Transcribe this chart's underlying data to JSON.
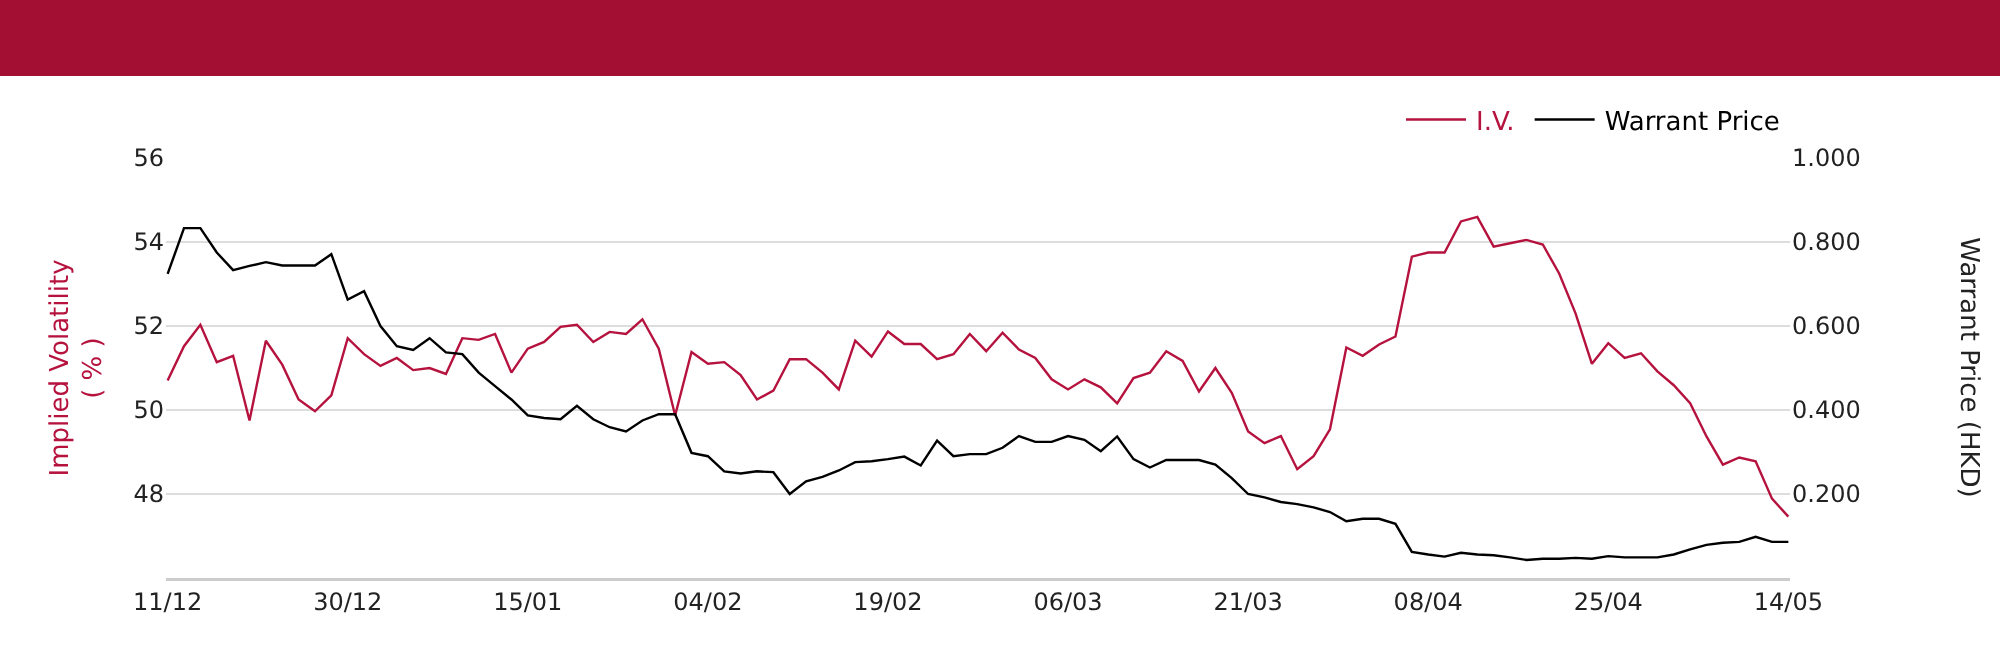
{
  "chart_data": {
    "type": "line",
    "xlabel": null,
    "ylabel": "Implied Volatility\n( % )",
    "y2label": "Warrant Price (HKD)",
    "categories": [
      "11/12",
      null,
      null,
      null,
      null,
      null,
      null,
      null,
      null,
      null,
      null,
      "30/12",
      null,
      null,
      null,
      null,
      null,
      null,
      null,
      null,
      null,
      null,
      "15/01",
      null,
      null,
      null,
      null,
      null,
      null,
      null,
      null,
      null,
      null,
      "04/02",
      null,
      null,
      null,
      null,
      null,
      null,
      null,
      null,
      null,
      null,
      "19/02",
      null,
      null,
      null,
      null,
      null,
      null,
      null,
      null,
      null,
      null,
      "06/03",
      null,
      null,
      null,
      null,
      null,
      null,
      null,
      null,
      null,
      null,
      "21/03",
      null,
      null,
      null,
      null,
      null,
      null,
      null,
      null,
      null,
      null,
      "08/04",
      null,
      null,
      null,
      null,
      null,
      null,
      null,
      null,
      null,
      null,
      "25/04",
      null,
      null,
      null,
      null,
      null,
      null,
      null,
      null,
      null,
      null,
      "14/05"
    ],
    "series": [
      {
        "name": "I.V.",
        "color": "#b5123e",
        "values": [
          50.7,
          51.52,
          52.03,
          51.14,
          51.29,
          49.75,
          51.65,
          51.08,
          50.25,
          49.97,
          50.35,
          51.71,
          51.33,
          51.05,
          51.24,
          50.95,
          51.0,
          50.86,
          51.71,
          51.67,
          51.81,
          50.89,
          51.46,
          51.62,
          51.98,
          52.03,
          51.62,
          51.86,
          51.81,
          52.16,
          51.46,
          49.87,
          51.38,
          51.1,
          51.14,
          50.83,
          50.25,
          50.46,
          51.21,
          51.21,
          50.89,
          50.49,
          51.65,
          51.27,
          51.87,
          51.57,
          51.57,
          51.21,
          51.33,
          51.81,
          51.4,
          51.84,
          51.44,
          51.24,
          50.73,
          50.49,
          50.73,
          50.54,
          50.16,
          50.76,
          50.89,
          51.4,
          51.17,
          50.44,
          51.0,
          50.41,
          49.49,
          49.21,
          49.38,
          48.59,
          48.9,
          49.54,
          51.49,
          51.29,
          51.56,
          51.75,
          53.65,
          53.75,
          53.75,
          54.49,
          54.6,
          53.89,
          53.97,
          54.05,
          53.94,
          53.25,
          52.3,
          51.1,
          51.59,
          51.24,
          51.35,
          50.92,
          50.59,
          50.16,
          49.37,
          48.7,
          48.87,
          48.78,
          47.89,
          47.46
        ]
      },
      {
        "name": "Warrant Price",
        "color": "#000000",
        "axis": "y2",
        "values": [
          0.724,
          0.833,
          0.833,
          0.775,
          0.733,
          0.743,
          0.752,
          0.744,
          0.744,
          0.744,
          0.771,
          0.663,
          0.683,
          0.6,
          0.552,
          0.543,
          0.571,
          0.537,
          0.533,
          0.489,
          0.457,
          0.425,
          0.387,
          0.381,
          0.378,
          0.41,
          0.378,
          0.359,
          0.349,
          0.375,
          0.39,
          0.39,
          0.298,
          0.29,
          0.254,
          0.249,
          0.254,
          0.252,
          0.2,
          0.23,
          0.241,
          0.256,
          0.276,
          0.278,
          0.283,
          0.289,
          0.268,
          0.327,
          0.29,
          0.295,
          0.295,
          0.31,
          0.338,
          0.324,
          0.324,
          0.338,
          0.329,
          0.302,
          0.337,
          0.283,
          0.263,
          0.281,
          0.281,
          0.281,
          0.27,
          0.238,
          0.2,
          0.192,
          0.181,
          0.176,
          0.168,
          0.157,
          0.135,
          0.141,
          0.141,
          0.129,
          0.062,
          0.056,
          0.051,
          0.06,
          0.056,
          0.054,
          0.049,
          0.043,
          0.046,
          0.046,
          0.048,
          0.046,
          0.052,
          0.049,
          0.049,
          0.049,
          0.056,
          0.068,
          0.079,
          0.084,
          0.086,
          0.098,
          0.086,
          0.086
        ]
      }
    ],
    "ylim": [
      46,
      56
    ],
    "yticks": [
      48,
      50,
      52,
      54,
      56
    ],
    "y2lim": [
      0,
      1
    ],
    "y2ticks": [
      {
        "value": 0.2,
        "label": "0.200"
      },
      {
        "value": 0.4,
        "label": "0.400"
      },
      {
        "value": 0.6,
        "label": "0.600"
      },
      {
        "value": 0.8,
        "label": "0.800"
      },
      {
        "value": 1.0,
        "label": "1.000"
      }
    ],
    "grid": "y",
    "legend": "top right",
    "marker": "none",
    "line_style": "solid"
  }
}
